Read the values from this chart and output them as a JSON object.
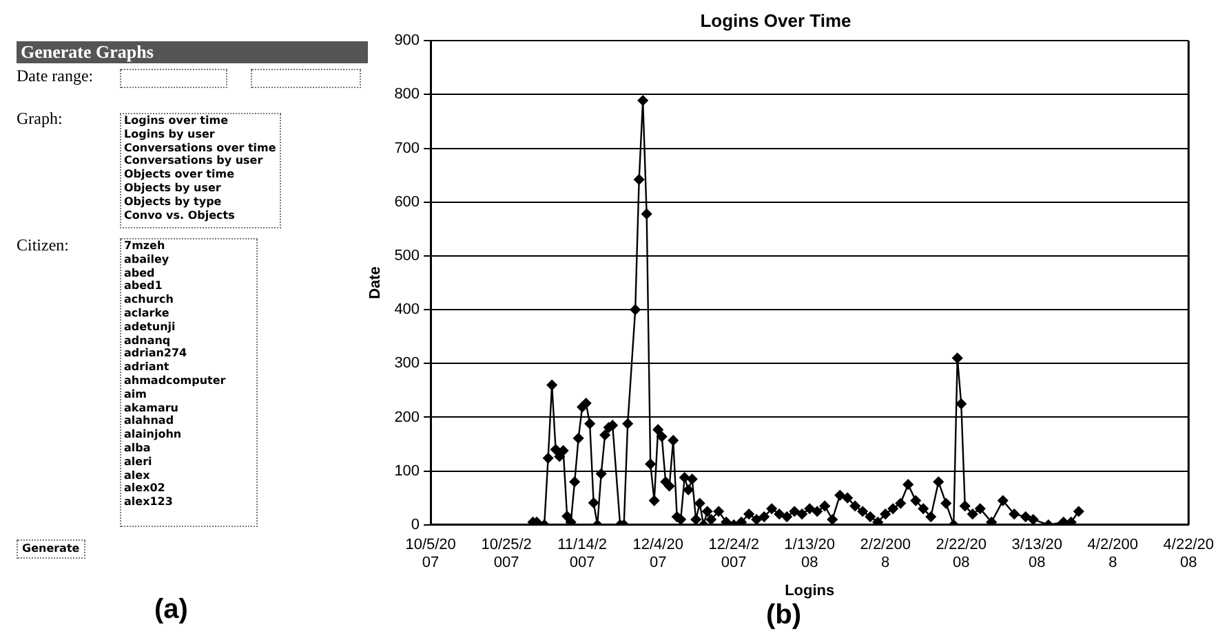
{
  "chart_data": [
    {
      "type": "other",
      "title": "Generate Graphs",
      "annotations": [
        "Date range:",
        "Graph:",
        "Logins over time",
        "Logins by user",
        "Conversations over time",
        "Conversations by user",
        "Objects over time",
        "Objects by user",
        "Objects by type",
        "Convo vs. Objects",
        "Citizen:",
        "7mzeh",
        "abailey",
        "abed",
        "abed1",
        "achurch",
        "aclarke",
        "adetunji",
        "adnanq",
        "adrian274",
        "adriant",
        "ahmadcomputer",
        "aim",
        "akamaru",
        "alahnad",
        "alainjohn",
        "alba",
        "aleri",
        "alex",
        "alex02",
        "alex123",
        "Generate",
        "(a)"
      ]
    },
    {
      "type": "line",
      "title": "Logins Over Time",
      "xlabel": "Logins",
      "ylabel": "Date",
      "annotations": [
        "(b)"
      ],
      "color": "#000000",
      "marker": "diamond",
      "grid": "y",
      "legend": false,
      "xlim": [
        "2007-10-05",
        "2008-04-22"
      ],
      "xticks": [
        {
          "value": "2007-10-05",
          "label": "10/5/2007"
        },
        {
          "value": "2007-10-25",
          "label": "10/25/2007"
        },
        {
          "value": "2007-11-14",
          "label": "11/14/2007"
        },
        {
          "value": "2007-12-04",
          "label": "12/4/2007"
        },
        {
          "value": "2007-12-24",
          "label": "12/24/2007"
        },
        {
          "value": "2008-01-13",
          "label": "1/13/2008"
        },
        {
          "value": "2008-02-02",
          "label": "2/2/2008"
        },
        {
          "value": "2008-02-22",
          "label": "2/22/2008"
        },
        {
          "value": "2008-03-13",
          "label": "3/13/2008"
        },
        {
          "value": "2008-04-02",
          "label": "4/2/2008"
        },
        {
          "value": "2008-04-22",
          "label": "4/22/2008"
        }
      ],
      "ylim": [
        0,
        900
      ],
      "yticks": [
        0,
        100,
        200,
        300,
        400,
        500,
        600,
        700,
        800,
        900
      ],
      "x": [
        "2007-11-01",
        "2007-11-02",
        "2007-11-04",
        "2007-11-05",
        "2007-11-06",
        "2007-11-07",
        "2007-11-08",
        "2007-11-09",
        "2007-11-10",
        "2007-11-11",
        "2007-11-12",
        "2007-11-13",
        "2007-11-14",
        "2007-11-15",
        "2007-11-16",
        "2007-11-17",
        "2007-11-18",
        "2007-11-19",
        "2007-11-20",
        "2007-11-21",
        "2007-11-22",
        "2007-11-24",
        "2007-11-25",
        "2007-11-26",
        "2007-11-28",
        "2007-11-29",
        "2007-11-30",
        "2007-12-01",
        "2007-12-02",
        "2007-12-03",
        "2007-12-04",
        "2007-12-05",
        "2007-12-06",
        "2007-12-07",
        "2007-12-08",
        "2007-12-09",
        "2007-12-10",
        "2007-12-11",
        "2007-12-12",
        "2007-12-13",
        "2007-12-14",
        "2007-12-15",
        "2007-12-16",
        "2007-12-17",
        "2007-12-18",
        "2007-12-20",
        "2007-12-22",
        "2007-12-24",
        "2007-12-26",
        "2007-12-28",
        "2007-12-30",
        "2008-01-01",
        "2008-01-03",
        "2008-01-05",
        "2008-01-07",
        "2008-01-09",
        "2008-01-11",
        "2008-01-13",
        "2008-01-15",
        "2008-01-17",
        "2008-01-19",
        "2008-01-21",
        "2008-01-23",
        "2008-01-25",
        "2008-01-27",
        "2008-01-29",
        "2008-01-31",
        "2008-02-02",
        "2008-02-04",
        "2008-02-06",
        "2008-02-08",
        "2008-02-10",
        "2008-02-12",
        "2008-02-14",
        "2008-02-16",
        "2008-02-18",
        "2008-02-20",
        "2008-02-21",
        "2008-02-22",
        "2008-02-23",
        "2008-02-25",
        "2008-02-27",
        "2008-03-01",
        "2008-03-04",
        "2008-03-07",
        "2008-03-10",
        "2008-03-12",
        "2008-03-16",
        "2008-03-20",
        "2008-03-22",
        "2008-03-24"
      ],
      "values": [
        5,
        5,
        0,
        124,
        260,
        140,
        127,
        138,
        16,
        5,
        80,
        161,
        219,
        226,
        188,
        41,
        0,
        95,
        167,
        181,
        185,
        0,
        0,
        188,
        400,
        642,
        789,
        578,
        113,
        45,
        177,
        164,
        80,
        72,
        157,
        15,
        10,
        88,
        65,
        85,
        10,
        40,
        0,
        25,
        10,
        25,
        5,
        0,
        5,
        20,
        10,
        15,
        30,
        20,
        15,
        25,
        20,
        30,
        25,
        35,
        10,
        55,
        50,
        35,
        25,
        15,
        5,
        20,
        30,
        40,
        75,
        45,
        30,
        15,
        80,
        40,
        0,
        310,
        225,
        35,
        20,
        30,
        5,
        45,
        20,
        15,
        10,
        0,
        5,
        5,
        25
      ]
    }
  ]
}
